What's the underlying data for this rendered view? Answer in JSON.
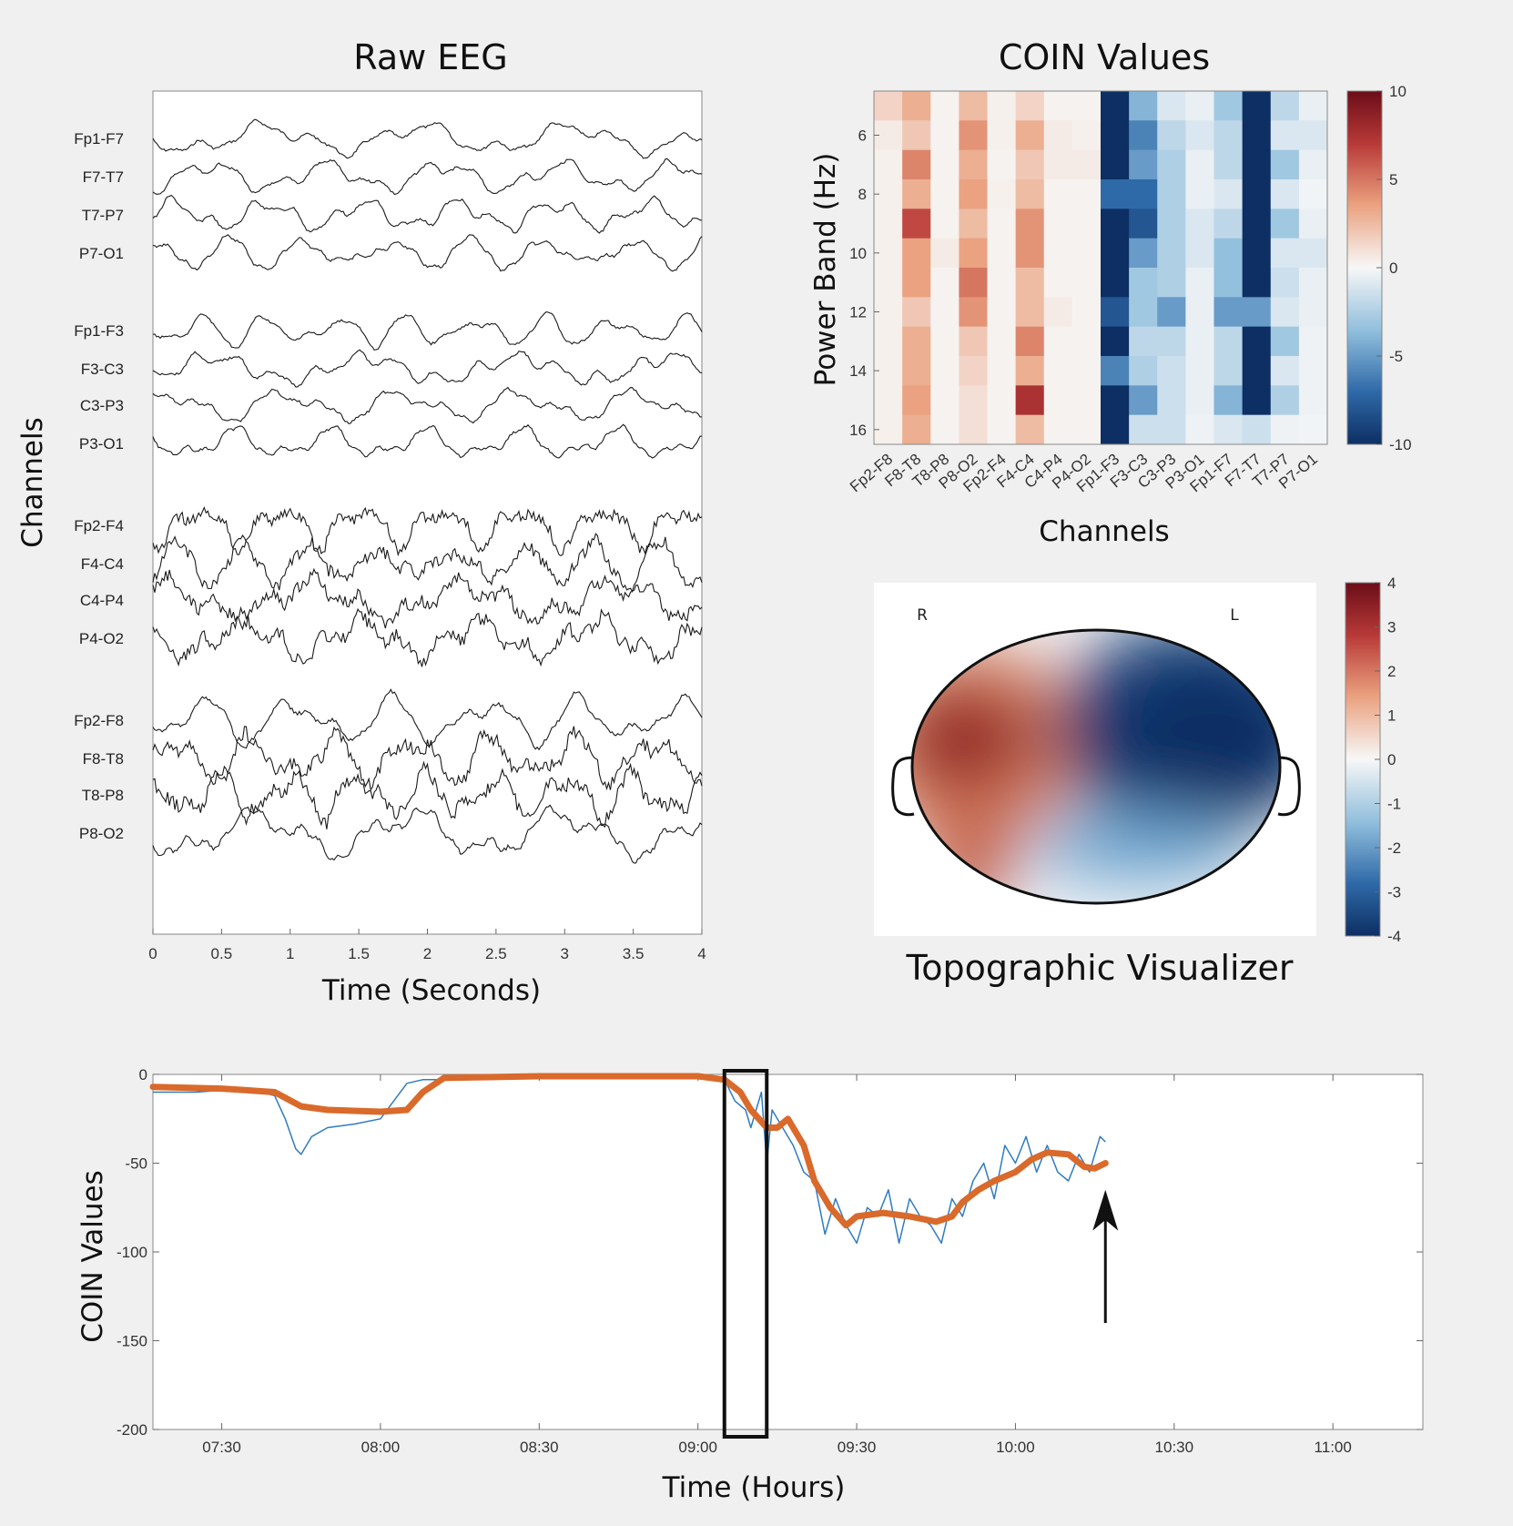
{
  "chart_data": [
    {
      "type": "line",
      "title": "Raw EEG",
      "xlabel": "Time (Seconds)",
      "ylabel": "Channels",
      "xlim": [
        0,
        4
      ],
      "x_ticks": [
        "0",
        "0.5",
        "1",
        "1.5",
        "2",
        "2.5",
        "3",
        "3.5",
        "4"
      ],
      "channels": [
        "Fp1-F7",
        "F7-T7",
        "T7-P7",
        "P7-O1",
        "Fp1-F3",
        "F3-C3",
        "C3-P3",
        "P3-O1",
        "Fp2-F4",
        "F4-C4",
        "C4-P4",
        "P4-O2",
        "Fp2-F8",
        "F8-T8",
        "T8-P8",
        "P8-O2"
      ],
      "grid": false
    },
    {
      "type": "heatmap",
      "title": "COIN Values",
      "xlabel": "Channels",
      "ylabel": "Power Band (Hz)",
      "x_ticks": [
        "Fp2-F8",
        "F8-T8",
        "T8-P8",
        "P8-O2",
        "Fp2-F4",
        "F4-C4",
        "C4-P4",
        "P4-O2",
        "Fp1-F3",
        "F3-C3",
        "C3-P3",
        "P3-O1",
        "Fp1-F7",
        "F7-T7",
        "T7-P7",
        "P7-O1"
      ],
      "y_values": [
        5,
        6,
        7,
        8,
        9,
        10,
        11,
        12,
        13,
        14,
        15,
        16
      ],
      "y_ticks": [
        "6",
        "8",
        "10",
        "12",
        "14",
        "16"
      ],
      "colorbar_ticks": [
        "10",
        "5",
        "0",
        "-5",
        "-10"
      ],
      "clim": [
        -10,
        10
      ],
      "values": [
        [
          1.5,
          3,
          0.2,
          2.5,
          0.3,
          1.5,
          0.2,
          0.2,
          -10,
          -4,
          -1,
          -0.5,
          -3,
          -10,
          -2,
          -0.5
        ],
        [
          0.5,
          2,
          0.2,
          4,
          0.3,
          3,
          0.5,
          0.3,
          -10,
          -6,
          -2,
          -1,
          -2,
          -10,
          -1,
          -1
        ],
        [
          0.3,
          4.5,
          0.2,
          3,
          0.2,
          2,
          0.5,
          0.5,
          -10,
          -5,
          -2.5,
          -0.5,
          -2,
          -10,
          -3,
          -0.5
        ],
        [
          0.3,
          3,
          0.2,
          3.5,
          0.3,
          2.5,
          0.2,
          0.2,
          -7,
          -7,
          -2.5,
          -0.5,
          -1,
          -10,
          -1,
          -0.2
        ],
        [
          0.3,
          6.5,
          0.2,
          2.5,
          0.2,
          4,
          0.2,
          0.2,
          -10,
          -8,
          -2.5,
          -1,
          -2,
          -10,
          -3,
          -0.5
        ],
        [
          0.3,
          3.5,
          0.5,
          3.5,
          0.2,
          4,
          0.2,
          0.2,
          -10,
          -5,
          -2.5,
          -1,
          -3.5,
          -10,
          -1,
          -1
        ],
        [
          0.3,
          3.5,
          0.2,
          5,
          0.2,
          2.5,
          0.2,
          0.2,
          -10,
          -3,
          -2.5,
          -0.5,
          -3.5,
          -10,
          -1.5,
          -0.5
        ],
        [
          0.3,
          2,
          0.2,
          4,
          0.2,
          2.5,
          0.5,
          0.2,
          -8,
          -3,
          -5,
          -0.5,
          -5,
          -5,
          -1,
          -0.5
        ],
        [
          0.3,
          3,
          0.2,
          2,
          0.2,
          4.5,
          0.2,
          0.2,
          -10,
          -2,
          -2,
          -0.5,
          -2,
          -10,
          -3,
          -0.3
        ],
        [
          0.3,
          3,
          0.2,
          1.5,
          0.2,
          3,
          0.2,
          0.2,
          -6,
          -2.5,
          -1.5,
          -0.5,
          -2,
          -10,
          -1,
          -0.3
        ],
        [
          0.3,
          3.5,
          0.2,
          1,
          0.2,
          7.5,
          0.2,
          0.2,
          -10,
          -5,
          -1.5,
          -0.5,
          -4,
          -10,
          -2.5,
          -0.3
        ],
        [
          0.3,
          3,
          0.2,
          1,
          0.2,
          2.5,
          0.2,
          0.2,
          -10,
          -1.5,
          -1.5,
          -0.3,
          -1,
          -1.5,
          -0.3,
          -0.2
        ]
      ]
    },
    {
      "type": "heatmap",
      "title": "Topographic Visualizer",
      "left_label": "R",
      "right_label": "L",
      "colorbar_ticks": [
        "4",
        "3",
        "2",
        "1",
        "0",
        "-1",
        "-2",
        "-3",
        "-4"
      ],
      "clim": [
        -4,
        4
      ]
    },
    {
      "type": "line",
      "xlabel": "Time (Hours)",
      "ylabel": "COIN Values",
      "ylim": [
        -200,
        0
      ],
      "xlim": [
        "07:17",
        "11:17"
      ],
      "x_ticks": [
        "07:30",
        "08:00",
        "08:30",
        "09:00",
        "09:30",
        "10:00",
        "10:30",
        "11:00"
      ],
      "y_ticks": [
        "0",
        "-50",
        "-100",
        "-150",
        "-200"
      ],
      "highlight_window": [
        "09:05",
        "09:13"
      ],
      "arrow_at": "10:17",
      "series": [
        {
          "color": "#2f7bbf",
          "x": [
            "07:17",
            "07:25",
            "07:35",
            "07:40",
            "07:42",
            "07:44",
            "07:45",
            "07:47",
            "07:50",
            "07:55",
            "08:00",
            "08:05",
            "08:08",
            "08:15",
            "08:30",
            "08:45",
            "09:00",
            "09:05",
            "09:07",
            "09:09",
            "09:10",
            "09:12",
            "09:13",
            "09:14",
            "09:16",
            "09:18",
            "09:20",
            "09:22",
            "09:24",
            "09:26",
            "09:28",
            "09:30",
            "09:32",
            "09:34",
            "09:36",
            "09:38",
            "09:40",
            "09:42",
            "09:44",
            "09:46",
            "09:48",
            "09:50",
            "09:52",
            "09:54",
            "09:56",
            "09:58",
            "10:00",
            "10:02",
            "10:04",
            "10:06",
            "10:08",
            "10:10",
            "10:12",
            "10:14",
            "10:16",
            "10:17"
          ],
          "values": [
            -10,
            -10,
            -8,
            -12,
            -25,
            -42,
            -45,
            -35,
            -30,
            -28,
            -25,
            -5,
            -3,
            -3,
            -2,
            -2,
            -2,
            -3,
            -15,
            -20,
            -30,
            -10,
            -50,
            -20,
            -30,
            -40,
            -55,
            -60,
            -90,
            -70,
            -85,
            -95,
            -75,
            -80,
            -65,
            -95,
            -70,
            -80,
            -85,
            -95,
            -70,
            -80,
            -60,
            -50,
            -70,
            -40,
            -50,
            -35,
            -55,
            -40,
            -55,
            -60,
            -45,
            -55,
            -35,
            -38
          ]
        },
        {
          "color": "#d96a2b",
          "x": [
            "07:17",
            "07:30",
            "07:40",
            "07:45",
            "07:50",
            "08:00",
            "08:05",
            "08:08",
            "08:12",
            "08:30",
            "08:45",
            "09:00",
            "09:05",
            "09:08",
            "09:10",
            "09:13",
            "09:15",
            "09:17",
            "09:20",
            "09:22",
            "09:25",
            "09:28",
            "09:30",
            "09:35",
            "09:40",
            "09:45",
            "09:48",
            "09:50",
            "09:53",
            "09:56",
            "10:00",
            "10:03",
            "10:06",
            "10:10",
            "10:13",
            "10:15",
            "10:17"
          ],
          "values": [
            -7,
            -8,
            -10,
            -18,
            -20,
            -21,
            -20,
            -10,
            -2,
            -1,
            -1,
            -1,
            -3,
            -10,
            -20,
            -30,
            -30,
            -25,
            -40,
            -60,
            -75,
            -85,
            -80,
            -78,
            -80,
            -83,
            -80,
            -72,
            -65,
            -60,
            -55,
            -48,
            -44,
            -45,
            -52,
            -53,
            -50
          ]
        }
      ]
    }
  ]
}
